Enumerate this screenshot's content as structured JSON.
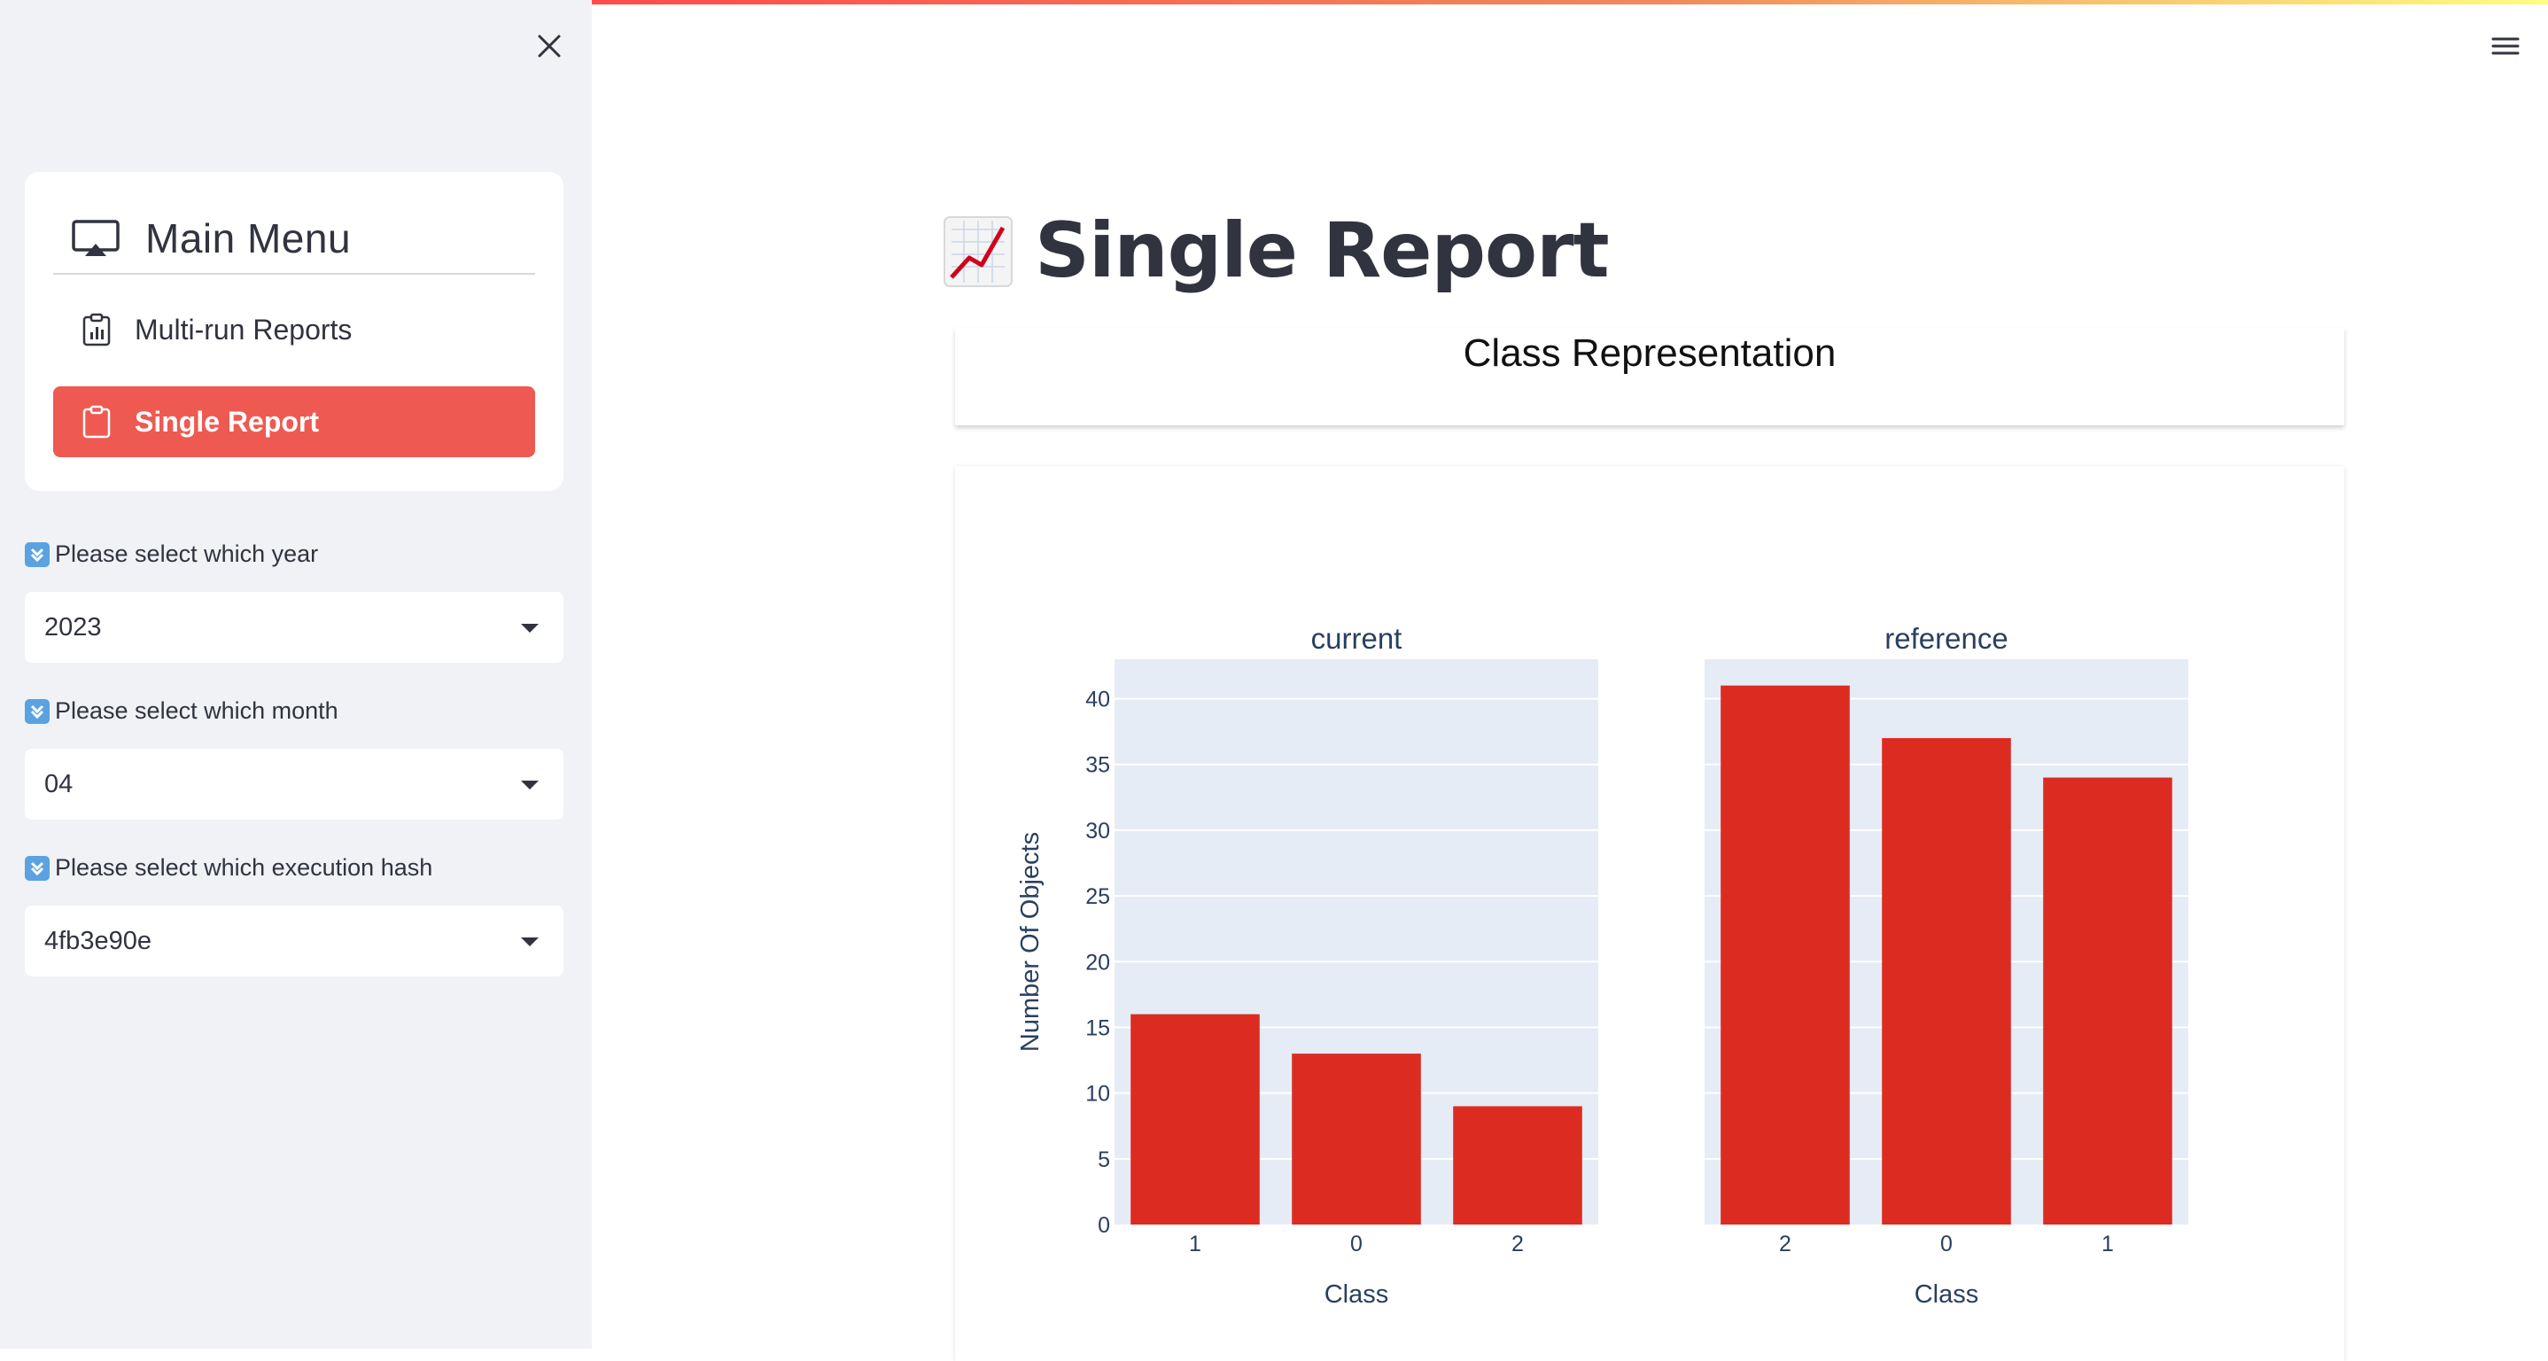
{
  "sidebar": {
    "menu_title": "Main Menu",
    "items": [
      {
        "label": "Multi-run Reports",
        "active": false
      },
      {
        "label": "Single Report",
        "active": true
      }
    ],
    "fields": [
      {
        "label": "Please select which year",
        "value": "2023"
      },
      {
        "label": "Please select which month",
        "value": "04"
      },
      {
        "label": "Please select which execution hash",
        "value": "4fb3e90e"
      }
    ],
    "accent_color": "#ee5a52"
  },
  "main": {
    "title": "Single Report",
    "section_title": "Class Representation"
  },
  "chart_data": {
    "type": "bar",
    "ylabel": "Number Of Objects",
    "ylim": [
      0,
      43
    ],
    "yticks": [
      0,
      5,
      10,
      15,
      20,
      25,
      30,
      35,
      40
    ],
    "bar_color": "#dc2c21",
    "plot_bg": "#e5ecf6",
    "subplots": [
      {
        "title": "current",
        "xlabel": "Class",
        "categories": [
          "1",
          "0",
          "2"
        ],
        "values": [
          16,
          13,
          9
        ]
      },
      {
        "title": "reference",
        "xlabel": "Class",
        "categories": [
          "2",
          "0",
          "1"
        ],
        "values": [
          41,
          37,
          34
        ]
      }
    ]
  }
}
